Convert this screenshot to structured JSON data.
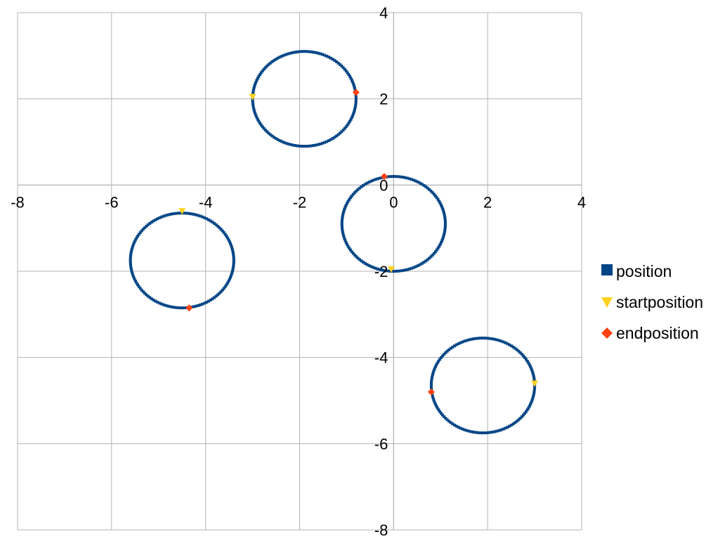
{
  "chart_data": {
    "type": "scatter",
    "xlim": [
      -8,
      4
    ],
    "ylim": [
      -8,
      4
    ],
    "x_ticks": [
      -8,
      -6,
      -4,
      -2,
      0,
      2,
      4
    ],
    "y_ticks": [
      4,
      2,
      0,
      -2,
      -4,
      -6,
      -8
    ],
    "x_tick_labels": [
      "-8",
      "-6",
      "-4",
      "-2",
      "0",
      "2",
      "4"
    ],
    "y_tick_labels": [
      "4",
      "2",
      "0",
      "-2",
      "-4",
      "-6",
      "-8"
    ],
    "grid": true,
    "legend_position": "right",
    "series": [
      {
        "name": "position",
        "color": "#004586",
        "marker": "square",
        "orbits": [
          {
            "cx": -1.9,
            "cy": 2.0,
            "r": 1.1
          },
          {
            "cx": 0.0,
            "cy": -0.9,
            "r": 1.1
          },
          {
            "cx": -4.5,
            "cy": -1.75,
            "r": 1.1
          },
          {
            "cx": 1.9,
            "cy": -4.65,
            "r": 1.1
          }
        ]
      },
      {
        "name": "startposition",
        "color": "#ffd320",
        "marker": "triangle-down",
        "points": [
          [
            -3.0,
            2.05
          ],
          [
            -0.05,
            -1.95
          ],
          [
            -4.5,
            -0.6
          ],
          [
            3.0,
            -4.6
          ]
        ]
      },
      {
        "name": "endposition",
        "color": "#ff420e",
        "marker": "diamond",
        "points": [
          [
            -0.8,
            2.15
          ],
          [
            -0.2,
            0.2
          ],
          [
            -4.35,
            -2.85
          ],
          [
            0.8,
            -4.8
          ]
        ]
      }
    ]
  }
}
